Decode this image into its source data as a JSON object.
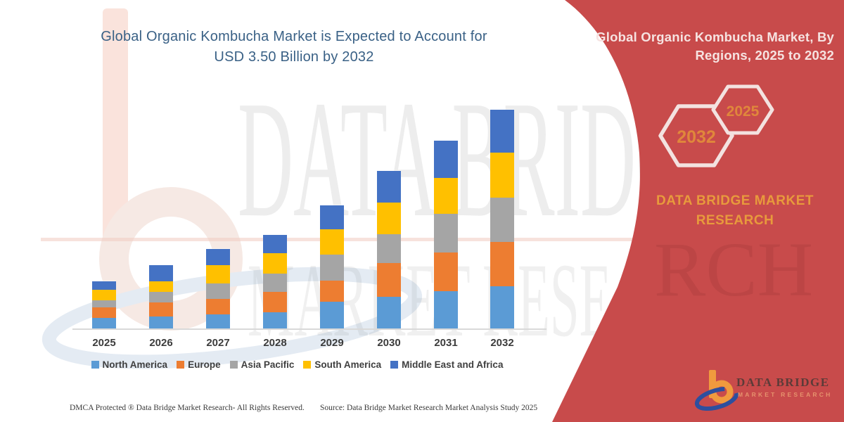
{
  "header": {
    "title_line1": "Global Organic Kombucha Market is Expected to Account for",
    "title_line2": "USD 3.50 Billion by 2032"
  },
  "watermark": {
    "line1": "DATA BRIDGE",
    "line2": "MARKET RESEARCH"
  },
  "panel": {
    "title_line1": "Global Organic Kombucha Market, By",
    "title_line2": "Regions, 2025 to 2032",
    "hexagon_left": "2032",
    "hexagon_right": "2025",
    "brand_line1": "DATA BRIDGE MARKET",
    "brand_line2": "RESEARCH",
    "colors": {
      "background": "#c84b4b",
      "hexagon_border": "#f3e2e0",
      "accent_orange": "#e0873b"
    }
  },
  "logo": {
    "line1": "DATA BRIDGE",
    "line2": "MARKET RESEARCH"
  },
  "footer": {
    "left": "DMCA Protected ® Data Bridge Market Research-  All Rights Reserved.",
    "right": "Source: Data Bridge Market Research  Market Analysis Study 2025"
  },
  "chart_data": {
    "type": "bar",
    "stacked": true,
    "title": "Global Organic Kombucha Market is Expected to Account for USD 3.50 Billion by 2032",
    "unit": "USD Billion",
    "categories": [
      "2025",
      "2026",
      "2027",
      "2028",
      "2029",
      "2030",
      "2031",
      "2032"
    ],
    "series": [
      {
        "name": "North America",
        "color": "#5B9BD5",
        "values": [
          0.17,
          0.19,
          0.22,
          0.26,
          0.43,
          0.5,
          0.59,
          0.67
        ]
      },
      {
        "name": "Europe",
        "color": "#ED7D31",
        "values": [
          0.17,
          0.22,
          0.25,
          0.33,
          0.34,
          0.54,
          0.62,
          0.71
        ]
      },
      {
        "name": "Asia Pacific",
        "color": "#A5A5A5",
        "values": [
          0.11,
          0.17,
          0.25,
          0.29,
          0.42,
          0.46,
          0.62,
          0.71
        ]
      },
      {
        "name": "South America",
        "color": "#FFC000",
        "values": [
          0.17,
          0.17,
          0.29,
          0.33,
          0.4,
          0.5,
          0.57,
          0.72
        ]
      },
      {
        "name": "Middle East and Africa",
        "color": "#4472C4",
        "values": [
          0.13,
          0.26,
          0.26,
          0.29,
          0.38,
          0.51,
          0.6,
          0.69
        ]
      }
    ],
    "totals": [
      0.75,
      1.01,
      1.27,
      1.5,
      1.97,
      2.51,
      3.0,
      3.5
    ],
    "ylim": [
      0,
      3.5
    ],
    "gridlines": false,
    "y_axis_visible": false,
    "legend_position": "bottom"
  }
}
